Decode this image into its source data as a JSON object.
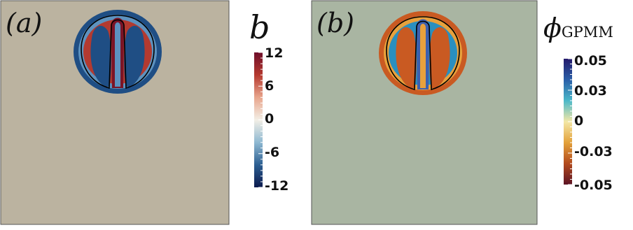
{
  "panels": [
    {
      "id": "a",
      "label": "(a)",
      "field": "b",
      "background_color": "#bbb3a0",
      "colorbar": {
        "title": "b",
        "title_subscript": "",
        "ticks": [
          "12",
          "6",
          "0",
          "-6",
          "-12"
        ],
        "colors": [
          "#6e0e2a",
          "#b5392f",
          "#e8a58c",
          "#f3efe6",
          "#8fb9d2",
          "#2c5e91",
          "#0b1a4d"
        ]
      },
      "pattern": {
        "outer_color": "#1f4e84",
        "mid_color": "#5d92bf",
        "inner_color": "#b33a30",
        "core_color": "#7a1426"
      }
    },
    {
      "id": "b",
      "label": "(b)",
      "field": "phi_GPMM",
      "background_color": "#a9b5a2",
      "colorbar": {
        "title": "ϕ",
        "title_subscript": "GPMM",
        "ticks": [
          "0.05",
          "0.03",
          "0",
          "-0.03",
          "-0.05"
        ],
        "colors": [
          "#241a6b",
          "#2a5fa8",
          "#4bb8c9",
          "#f3e7a6",
          "#e3a13a",
          "#b24a1d",
          "#5c1424"
        ]
      },
      "pattern": {
        "outer_color": "#c95a22",
        "mid_color": "#e8a13c",
        "inner_color": "#2a8fbf",
        "core_color": "#3c5fae"
      }
    }
  ]
}
